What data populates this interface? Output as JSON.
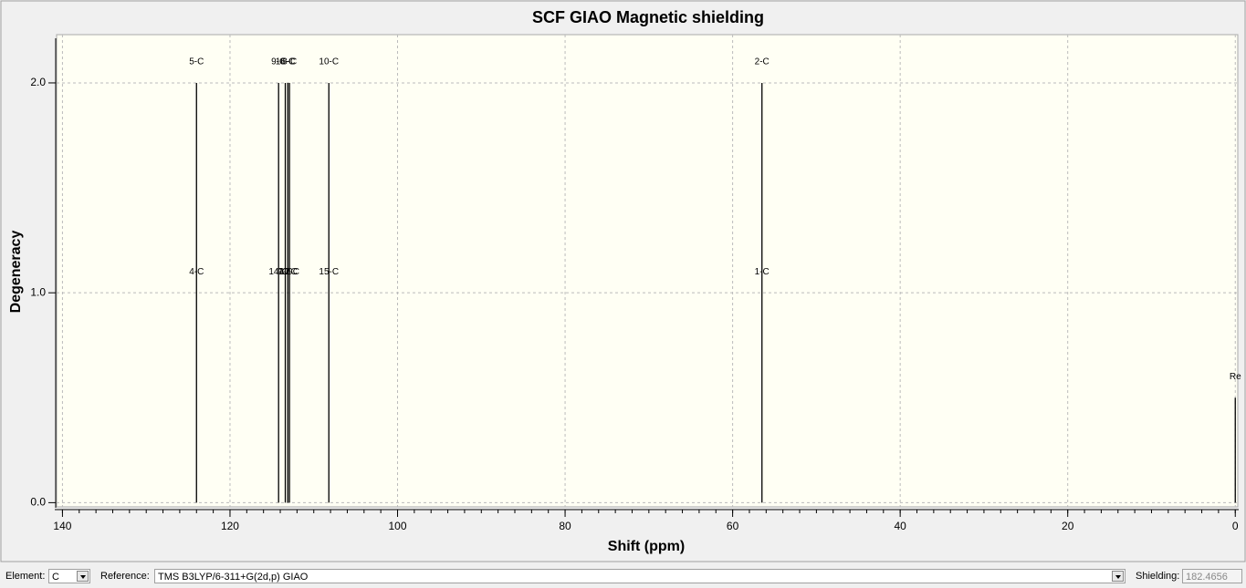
{
  "chart_data": {
    "type": "stick",
    "title": "SCF GIAO Magnetic shielding",
    "x_label": "Shift (ppm)",
    "y_label": "Degeneracy",
    "xlim": [
      140.7,
      -0.3
    ],
    "ylim": [
      -0.02,
      2.23
    ],
    "xticks": [
      140,
      120,
      100,
      80,
      60,
      40,
      20,
      0
    ],
    "x_minor_step": 2,
    "yticks": [
      {
        "value": 0,
        "label": "0.0"
      },
      {
        "value": 1,
        "label": "1.0"
      },
      {
        "value": 2,
        "label": "2.0"
      }
    ],
    "grid": true,
    "color": "#000000",
    "peaks": [
      {
        "x": 124.0,
        "height": 2,
        "labels": [
          "4-C",
          "5-C"
        ]
      },
      {
        "x": 114.2,
        "height": 2,
        "labels": [
          "14-C",
          "9-C"
        ]
      },
      {
        "x": 113.4,
        "height": 2,
        "labels": [
          "7-C",
          "16-C"
        ]
      },
      {
        "x": 113.1,
        "height": 2,
        "labels": [
          "11-C",
          "6-C"
        ]
      },
      {
        "x": 112.9,
        "height": 2,
        "labels": [
          "12-C",
          "8-C"
        ]
      },
      {
        "x": 108.2,
        "height": 2,
        "labels": [
          "15-C",
          "10-C"
        ]
      },
      {
        "x": 56.5,
        "height": 2,
        "labels": [
          "1-C",
          "2-C"
        ]
      },
      {
        "x": 0,
        "height": 0.5,
        "labels": [
          "Re"
        ]
      }
    ]
  },
  "controls": {
    "element_label": "Element:",
    "element": "C",
    "reference_label": "Reference:",
    "reference": "TMS B3LYP/6-311+G(2d,p) GIAO",
    "shielding_label": "Shielding:",
    "shielding": "182.4656"
  }
}
